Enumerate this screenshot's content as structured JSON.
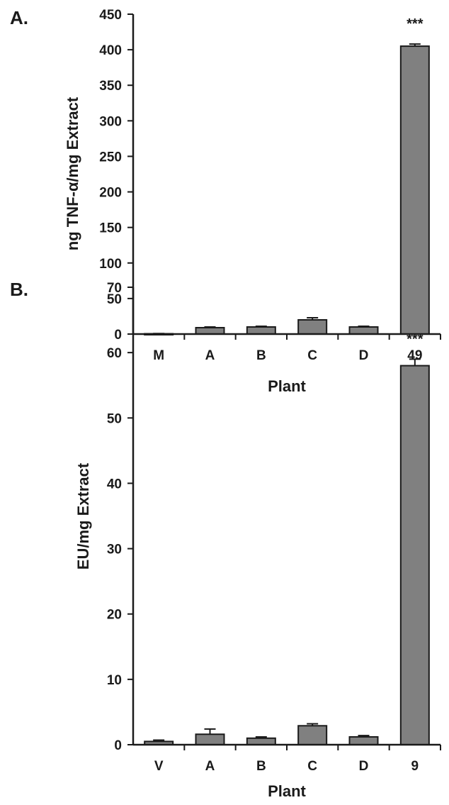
{
  "chart_data": [
    {
      "panel_label": "A.",
      "type": "bar",
      "ylabel": "ng TNF-α/mg Extract",
      "xlabel": "Plant",
      "ylim": [
        0,
        450
      ],
      "yticks": [
        0,
        50,
        100,
        150,
        200,
        250,
        300,
        350,
        400,
        450
      ],
      "categories": [
        "M",
        "A",
        "B",
        "C",
        "D",
        "49"
      ],
      "values": [
        0.5,
        9,
        10,
        20,
        10,
        405
      ],
      "errors": [
        0.3,
        1,
        1,
        3,
        1,
        3
      ],
      "annotations": [
        "",
        "",
        "",
        "",
        "",
        "***"
      ],
      "bar_color": "#808080",
      "grid": false
    },
    {
      "panel_label": "B.",
      "type": "bar",
      "ylabel": "EU/mg Extract",
      "xlabel": "Plant",
      "ylim": [
        0,
        70
      ],
      "yticks": [
        0,
        10,
        20,
        30,
        40,
        50,
        60,
        70
      ],
      "categories": [
        "V",
        "A",
        "B",
        "C",
        "D",
        "9"
      ],
      "values": [
        0.5,
        1.6,
        1.0,
        2.9,
        1.2,
        58
      ],
      "errors": [
        0.2,
        0.8,
        0.2,
        0.3,
        0.2,
        1.0
      ],
      "annotations": [
        "",
        "",
        "",
        "",
        "",
        "***"
      ],
      "bar_color": "#808080",
      "grid": false
    }
  ]
}
